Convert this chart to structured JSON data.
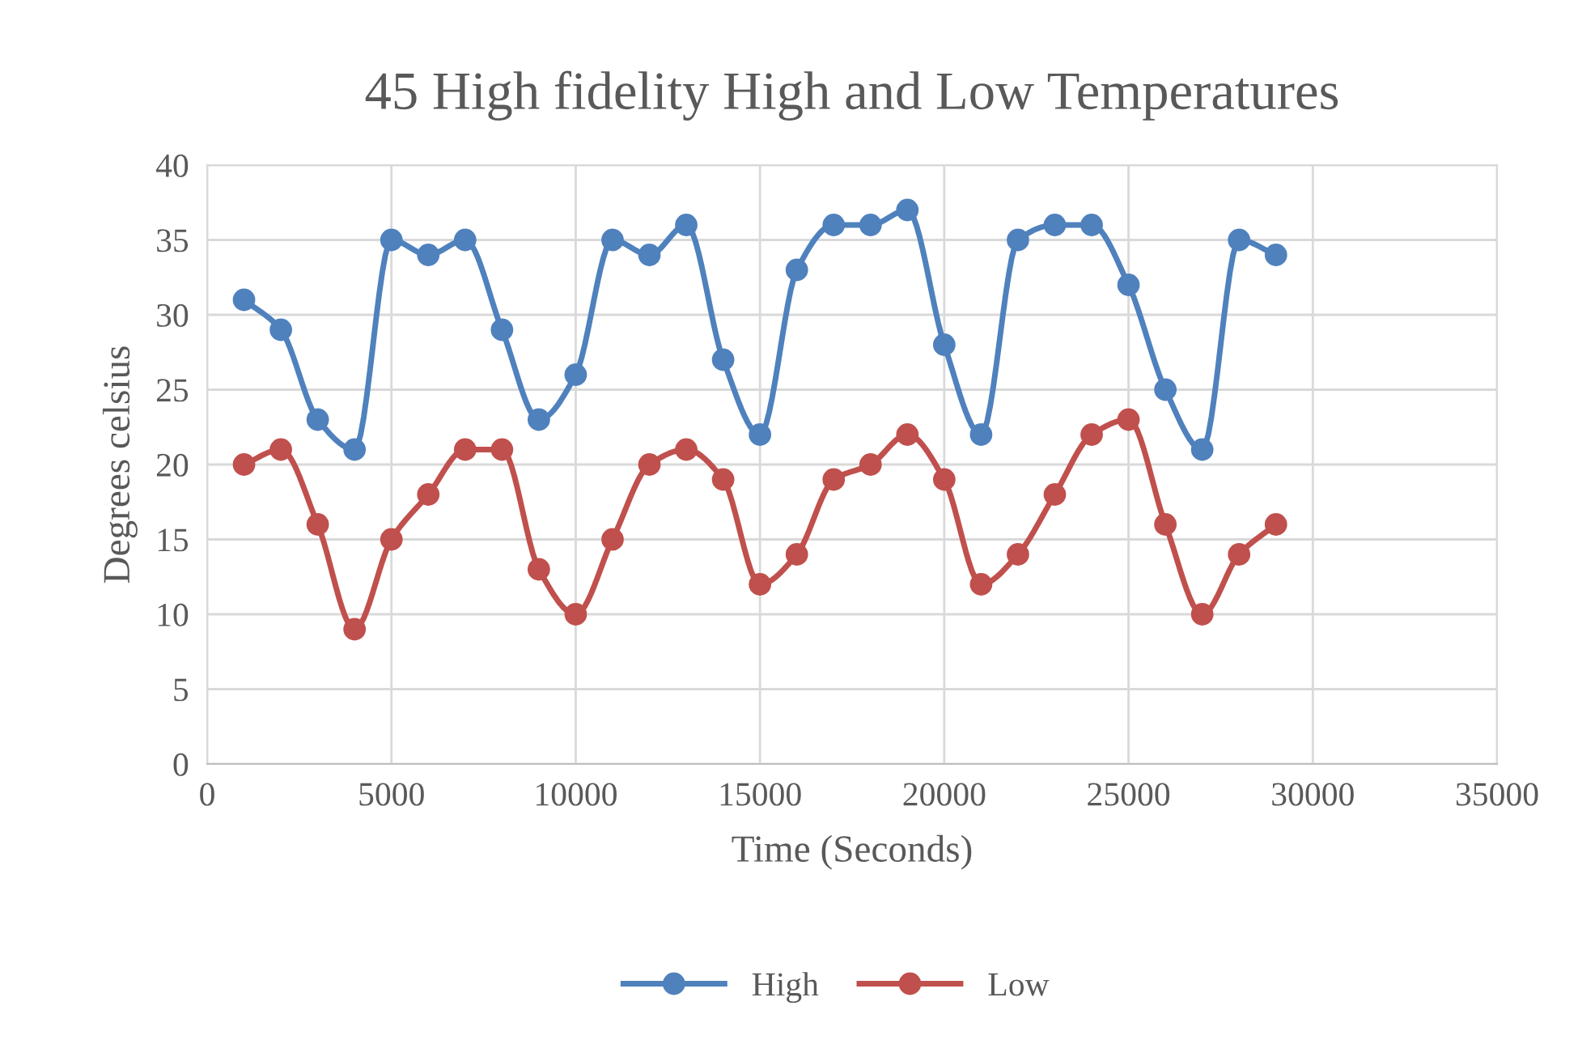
{
  "chart_data": {
    "type": "line",
    "title": "45 High fidelity High and Low Temperatures",
    "xlabel": "Time (Seconds)",
    "ylabel": "Degrees celsius",
    "x": [
      1000,
      2000,
      3000,
      4000,
      5000,
      6000,
      7000,
      8000,
      9000,
      10000,
      11000,
      12000,
      13000,
      14000,
      15000,
      16000,
      17000,
      18000,
      19000,
      20000,
      21000,
      22000,
      23000,
      24000,
      25000,
      26000,
      27000,
      28000,
      29000
    ],
    "series": [
      {
        "name": "High",
        "color": "#4f81bd",
        "values": [
          31,
          29,
          23,
          21,
          35,
          34,
          35,
          29,
          23,
          26,
          35,
          34,
          36,
          27,
          22,
          33,
          36,
          36,
          37,
          28,
          22,
          35,
          36,
          36,
          32,
          25,
          21,
          35,
          34
        ]
      },
      {
        "name": "Low",
        "color": "#c0504d",
        "values": [
          20,
          21,
          16,
          9,
          15,
          18,
          21,
          21,
          13,
          10,
          15,
          20,
          21,
          19,
          12,
          14,
          19,
          20,
          22,
          19,
          12,
          14,
          18,
          22,
          23,
          16,
          10,
          14,
          16
        ]
      }
    ],
    "xlim": [
      0,
      35000
    ],
    "xticks": [
      0,
      5000,
      10000,
      15000,
      20000,
      25000,
      30000,
      35000
    ],
    "ylim": [
      0,
      40
    ],
    "yticks": [
      0,
      5,
      10,
      15,
      20,
      25,
      30,
      35,
      40
    ],
    "grid": true,
    "legend": "bottom",
    "marker": "circle",
    "line_style": "solid"
  }
}
